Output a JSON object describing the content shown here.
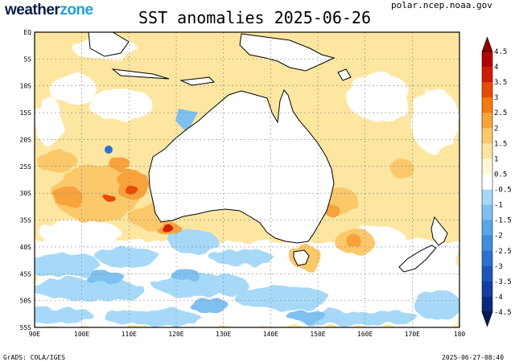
{
  "header": {
    "brand_part1": "weather",
    "brand_part2": "zone",
    "brand_colors": {
      "part1": "#0b1e4a",
      "part2": "#1fa0e3"
    },
    "title": "SST anomalies 2025-06-26",
    "source": "polar.ncep.noaa.gov"
  },
  "map": {
    "lat_labels": [
      "EQ",
      "5S",
      "10S",
      "15S",
      "20S",
      "25S",
      "30S",
      "35S",
      "40S",
      "45S",
      "50S",
      "55S"
    ],
    "lon_labels": [
      "90E",
      "100E",
      "110E",
      "120E",
      "130E",
      "140E",
      "150E",
      "160E",
      "170E",
      "180"
    ],
    "lat_range": [
      -55,
      0
    ],
    "lon_range": [
      90,
      180
    ],
    "grid": "dashed",
    "land_color": "#ffffff",
    "regions": [
      "Australia",
      "Tasmania",
      "New Zealand",
      "New Guinea",
      "Indonesia"
    ]
  },
  "colorbar": {
    "labels": [
      "4.5",
      "4",
      "3.5",
      "3",
      "2.5",
      "2",
      "1.5",
      "1",
      "0.5",
      "-0.5",
      "-1",
      "-1.5",
      "-2",
      "-2.5",
      "-3",
      "-3.5",
      "-4",
      "-4.5"
    ],
    "colors": [
      "#8b0000",
      "#b30000",
      "#d21a00",
      "#ea4a00",
      "#f57a0a",
      "#f8a23a",
      "#fbc86a",
      "#fde6a0",
      "#fff7d6",
      "#ffffff",
      "#a6d9f7",
      "#7ec0f0",
      "#56a6e8",
      "#3f8de0",
      "#2b71d4",
      "#1c55c0",
      "#123ea6",
      "#0a2a80",
      "#061a5a"
    ]
  },
  "footer": {
    "left": "GrADS: COLA/IGES",
    "right": "2025-06-27-08:40"
  }
}
